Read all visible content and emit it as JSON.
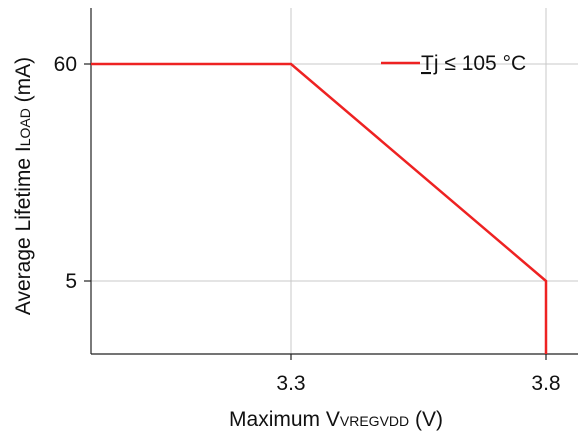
{
  "chart_data": {
    "type": "line",
    "title": "",
    "xlabel": {
      "main": "Maximum V",
      "sub": "VREGVDD",
      "unit": " (V)"
    },
    "ylabel": {
      "main": "Average Lifetime I",
      "sub": "LOAD",
      "unit": " (mA)"
    },
    "x_ticks": [
      {
        "value": 3.3,
        "label": "3.3"
      },
      {
        "value": 3.8,
        "label": "3.8"
      }
    ],
    "y_ticks": [
      {
        "value": 60,
        "label": "60"
      },
      {
        "value": 5,
        "label": "5"
      }
    ],
    "grid": true,
    "legend_position": "top-right",
    "series": [
      {
        "name": "Tj ≤ 105 °C",
        "color": "#ee2222",
        "points": [
          {
            "x": "left-edge",
            "y": 60
          },
          {
            "x": 3.3,
            "y": 60
          },
          {
            "x": 3.8,
            "y": 5
          },
          {
            "x": 3.8,
            "y": "bottom-edge"
          }
        ]
      }
    ]
  }
}
